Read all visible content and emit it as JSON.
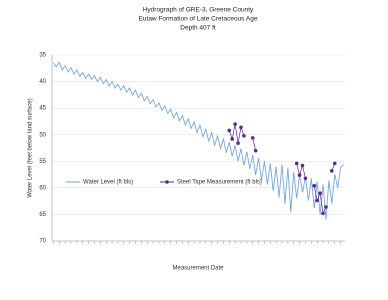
{
  "chart_data": {
    "type": "line",
    "title": [
      "Hydrograph of GRE-3, Greene County",
      "Eutaw Formation of Late Cretaceous Age",
      "Depth 407 ft"
    ],
    "y_label": "Water Level (feet below land surface)",
    "x_label": "Measurement Date",
    "ylim": [
      70,
      35
    ],
    "yticks": [
      35,
      40,
      45,
      50,
      55,
      60,
      65,
      70
    ],
    "grid": true,
    "series": [
      {
        "name": "Water Level (ft bls)",
        "color": "#7aa7d6",
        "style": "line",
        "values": [
          36.5,
          37.2,
          36.4,
          37.8,
          37.0,
          38.2,
          37.4,
          38.6,
          37.8,
          39.0,
          38.3,
          39.4,
          38.6,
          39.6,
          38.9,
          40.0,
          39.2,
          40.4,
          39.6,
          40.8,
          40.0,
          41.2,
          40.5,
          41.6,
          40.8,
          42.0,
          41.2,
          42.5,
          41.6,
          43.0,
          42.2,
          43.6,
          42.8,
          44.2,
          43.4,
          44.8,
          44.0,
          45.4,
          44.6,
          46.0,
          45.2,
          46.8,
          45.8,
          47.4,
          46.4,
          48.2,
          47.0,
          48.8,
          47.6,
          49.6,
          48.2,
          50.4,
          49.0,
          51.2,
          49.6,
          52.0,
          50.2,
          52.6,
          50.8,
          53.4,
          51.4,
          54.0,
          52.0,
          55.0,
          52.6,
          55.8,
          53.2,
          56.4,
          53.8,
          57.6,
          54.4,
          58.6,
          55.0,
          59.4,
          55.4,
          60.6,
          56.0,
          61.8,
          55.6,
          63.0,
          56.2,
          64.6,
          57.0,
          62.0,
          57.6,
          60.8,
          58.0,
          62.4,
          58.2,
          63.8,
          58.8,
          65.0,
          59.4,
          66.0,
          58.6,
          63.0,
          57.4,
          60.0,
          56.2,
          55.6
        ]
      },
      {
        "name": "Steel Tape Measurement (ft bls)",
        "color": "#5b2a86",
        "style": "marker",
        "values": [
          null,
          null,
          null,
          null,
          null,
          null,
          null,
          null,
          null,
          null,
          null,
          null,
          null,
          null,
          null,
          null,
          null,
          null,
          null,
          null,
          null,
          null,
          null,
          null,
          null,
          null,
          null,
          null,
          null,
          null,
          null,
          null,
          null,
          null,
          null,
          null,
          null,
          null,
          null,
          null,
          null,
          null,
          null,
          null,
          null,
          null,
          null,
          null,
          null,
          null,
          null,
          null,
          null,
          null,
          null,
          null,
          null,
          null,
          null,
          null,
          49.2,
          50.8,
          48.0,
          51.6,
          48.6,
          50.2,
          null,
          null,
          50.6,
          53.0,
          null,
          null,
          null,
          null,
          null,
          null,
          null,
          null,
          null,
          null,
          null,
          null,
          null,
          55.4,
          57.6,
          55.8,
          58.2,
          null,
          null,
          59.6,
          62.4,
          61.0,
          64.8,
          63.6,
          null,
          56.8,
          55.4,
          null,
          null,
          null
        ]
      }
    ]
  }
}
